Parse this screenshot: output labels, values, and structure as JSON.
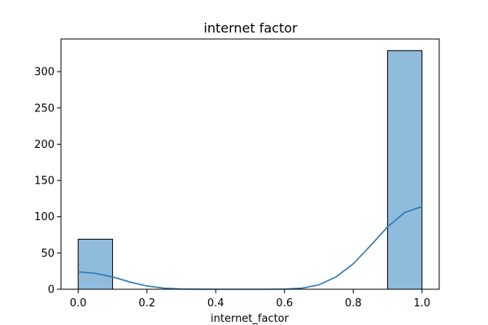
{
  "chart_data": {
    "type": "bar",
    "title": "internet factor",
    "xlabel": "internet_factor",
    "ylabel": "",
    "xlim": [
      -0.05,
      1.05
    ],
    "ylim": [
      0,
      345
    ],
    "grid": false,
    "x_ticks": [
      {
        "value": 0.0,
        "label": "0.0"
      },
      {
        "value": 0.2,
        "label": "0.2"
      },
      {
        "value": 0.4,
        "label": "0.4"
      },
      {
        "value": 0.6,
        "label": "0.6"
      },
      {
        "value": 0.8,
        "label": "0.8"
      },
      {
        "value": 1.0,
        "label": "1.0"
      }
    ],
    "y_ticks": [
      {
        "value": 0,
        "label": "0"
      },
      {
        "value": 50,
        "label": "50"
      },
      {
        "value": 100,
        "label": "100"
      },
      {
        "value": 150,
        "label": "150"
      },
      {
        "value": 200,
        "label": "200"
      },
      {
        "value": 250,
        "label": "250"
      },
      {
        "value": 300,
        "label": "300"
      }
    ],
    "bins": [
      {
        "x0": 0.0,
        "x1": 0.1,
        "count": 69
      },
      {
        "x0": 0.1,
        "x1": 0.2,
        "count": 0
      },
      {
        "x0": 0.2,
        "x1": 0.3,
        "count": 0
      },
      {
        "x0": 0.3,
        "x1": 0.4,
        "count": 0
      },
      {
        "x0": 0.4,
        "x1": 0.5,
        "count": 0
      },
      {
        "x0": 0.5,
        "x1": 0.6,
        "count": 0
      },
      {
        "x0": 0.6,
        "x1": 0.7,
        "count": 0
      },
      {
        "x0": 0.7,
        "x1": 0.8,
        "count": 0
      },
      {
        "x0": 0.8,
        "x1": 0.9,
        "count": 0
      },
      {
        "x0": 0.9,
        "x1": 1.0,
        "count": 329
      }
    ],
    "kde": {
      "x": [
        0.0,
        0.05,
        0.1,
        0.15,
        0.2,
        0.25,
        0.3,
        0.35,
        0.4,
        0.45,
        0.5,
        0.55,
        0.6,
        0.65,
        0.7,
        0.75,
        0.8,
        0.85,
        0.9,
        0.95,
        1.0
      ],
      "y": [
        24,
        22,
        17,
        10,
        4.5,
        1.5,
        0.4,
        0.1,
        0,
        0,
        0,
        0,
        0.2,
        1.5,
        6,
        17,
        35,
        60,
        86,
        106,
        114
      ]
    },
    "colors": {
      "bar_fill": "#8fbbdc",
      "bar_edge": "#000000",
      "kde_line": "#2a77b4"
    }
  }
}
